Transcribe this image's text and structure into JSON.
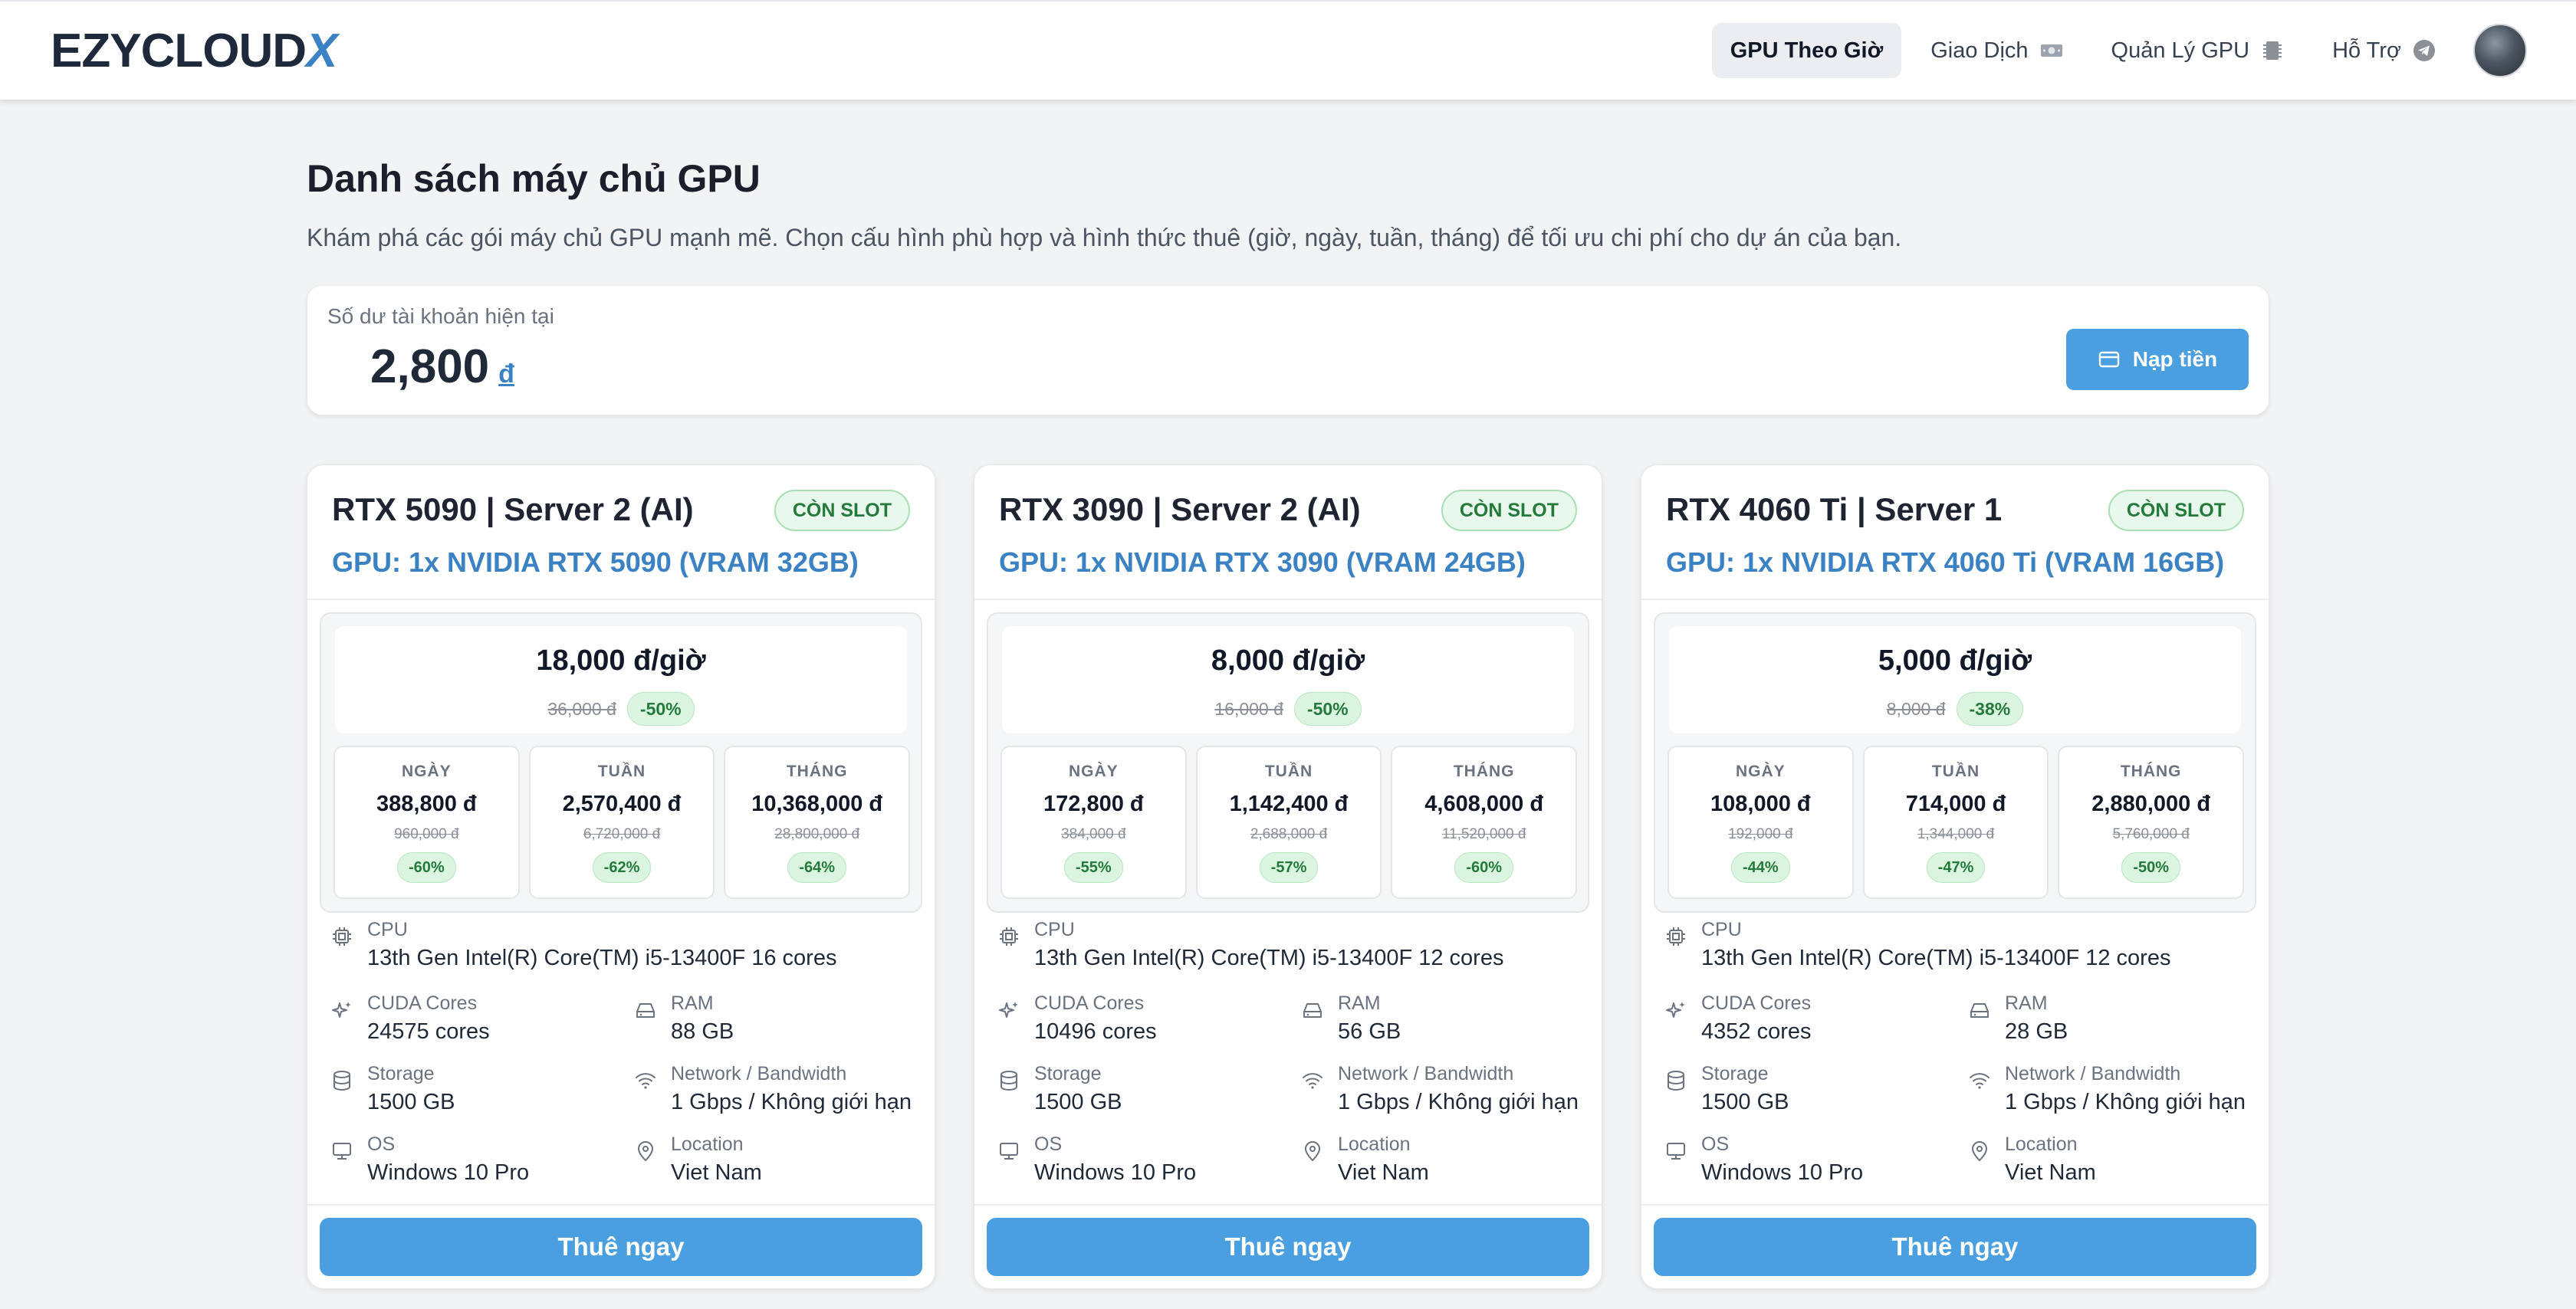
{
  "brand": {
    "name": "EZYCLOUD",
    "suffix": "X"
  },
  "nav": [
    {
      "label": "GPU Theo Giờ",
      "icon": "",
      "active": true
    },
    {
      "label": "Giao Dịch",
      "icon": "money-icon",
      "active": false
    },
    {
      "label": "Quản Lý GPU",
      "icon": "chip-icon",
      "active": false
    },
    {
      "label": "Hỗ Trợ",
      "icon": "telegram-icon",
      "active": false
    }
  ],
  "page": {
    "title": "Danh sách máy chủ GPU",
    "description": "Khám phá các gói máy chủ GPU mạnh mẽ. Chọn cấu hình phù hợp và hình thức thuê (giờ, ngày, tuần, tháng) để tối ưu chi phí cho dự án của bạn."
  },
  "balance": {
    "label": "Số dư tài khoản hiện tại",
    "amount": "2,800",
    "currency": "đ",
    "topup_label": "Nạp tiền"
  },
  "labels": {
    "day": "NGÀY",
    "week": "TUẦN",
    "month": "THÁNG",
    "cpu": "CPU",
    "cuda": "CUDA Cores",
    "ram": "RAM",
    "storage": "Storage",
    "network": "Network / Bandwidth",
    "os": "OS",
    "location": "Location",
    "rent": "Thuê ngay"
  },
  "servers": [
    {
      "name": "RTX 5090 | Server 2 (AI)",
      "slot": "CÒN SLOT",
      "gpu": "GPU: 1x NVIDIA RTX 5090 (VRAM 32GB)",
      "hour_price": "18,000 đ/giờ",
      "hour_old": "36,000 đ",
      "hour_disc": "-50%",
      "day": {
        "price": "388,800 đ",
        "old": "960,000 đ",
        "disc": "-60%"
      },
      "week": {
        "price": "2,570,400 đ",
        "old": "6,720,000 đ",
        "disc": "-62%"
      },
      "month": {
        "price": "10,368,000 đ",
        "old": "28,800,000 đ",
        "disc": "-64%"
      },
      "cpu": "13th Gen Intel(R) Core(TM) i5-13400F 16 cores",
      "cuda": "24575 cores",
      "ram": "88 GB",
      "storage": "1500 GB",
      "network": "1 Gbps / Không giới hạn",
      "os": "Windows 10 Pro",
      "location": "Viet Nam"
    },
    {
      "name": "RTX 3090 | Server 2 (AI)",
      "slot": "CÒN SLOT",
      "gpu": "GPU: 1x NVIDIA RTX 3090 (VRAM 24GB)",
      "hour_price": "8,000 đ/giờ",
      "hour_old": "16,000 đ",
      "hour_disc": "-50%",
      "day": {
        "price": "172,800 đ",
        "old": "384,000 đ",
        "disc": "-55%"
      },
      "week": {
        "price": "1,142,400 đ",
        "old": "2,688,000 đ",
        "disc": "-57%"
      },
      "month": {
        "price": "4,608,000 đ",
        "old": "11,520,000 đ",
        "disc": "-60%"
      },
      "cpu": "13th Gen Intel(R) Core(TM) i5-13400F 12 cores",
      "cuda": "10496 cores",
      "ram": "56 GB",
      "storage": "1500 GB",
      "network": "1 Gbps / Không giới hạn",
      "os": "Windows 10 Pro",
      "location": "Viet Nam"
    },
    {
      "name": "RTX 4060 Ti | Server 1",
      "slot": "CÒN SLOT",
      "gpu": "GPU: 1x NVIDIA RTX 4060 Ti (VRAM 16GB)",
      "hour_price": "5,000 đ/giờ",
      "hour_old": "8,000 đ",
      "hour_disc": "-38%",
      "day": {
        "price": "108,000 đ",
        "old": "192,000 đ",
        "disc": "-44%"
      },
      "week": {
        "price": "714,000 đ",
        "old": "1,344,000 đ",
        "disc": "-47%"
      },
      "month": {
        "price": "2,880,000 đ",
        "old": "5,760,000 đ",
        "disc": "-50%"
      },
      "cpu": "13th Gen Intel(R) Core(TM) i5-13400F 12 cores",
      "cuda": "4352 cores",
      "ram": "28 GB",
      "storage": "1500 GB",
      "network": "1 Gbps / Không giới hạn",
      "os": "Windows 10 Pro",
      "location": "Viet Nam"
    }
  ]
}
